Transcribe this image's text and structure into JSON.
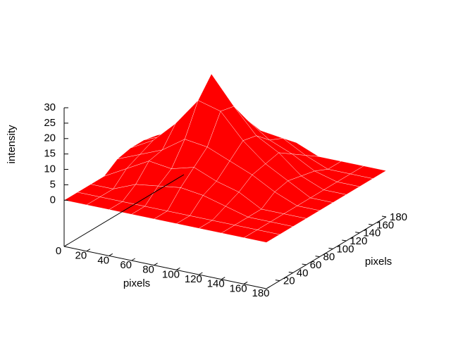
{
  "chart_data": {
    "type": "surface",
    "xlabel": "pixels",
    "ylabel": "pixels",
    "zlabel": "intensity",
    "color": "#ff0000",
    "xlim": [
      0,
      180
    ],
    "xticks": [
      0,
      20,
      40,
      60,
      80,
      100,
      120,
      140,
      160,
      180
    ],
    "ylim": [
      0,
      180
    ],
    "yticks": [
      20,
      40,
      60,
      80,
      100,
      120,
      140,
      160,
      180
    ],
    "zlim": [
      -15,
      30
    ],
    "zticks": [
      0,
      5,
      10,
      15,
      20,
      25,
      30
    ],
    "x": [
      0,
      20,
      40,
      60,
      80,
      100,
      120,
      140,
      160,
      180
    ],
    "y": [
      0,
      20,
      40,
      60,
      80,
      100,
      120,
      140,
      160,
      180
    ],
    "z": [
      [
        0,
        0,
        0,
        0,
        0,
        0,
        0,
        0,
        0,
        0
      ],
      [
        0,
        0,
        0,
        0,
        0,
        0,
        0,
        0,
        0,
        0
      ],
      [
        0,
        0,
        3,
        4,
        5,
        4,
        2,
        0,
        0,
        0
      ],
      [
        0,
        4,
        8,
        7,
        9,
        6,
        4,
        0,
        0,
        0
      ],
      [
        3,
        6,
        9,
        14,
        13,
        10,
        7,
        3,
        0,
        0
      ],
      [
        4,
        8,
        15,
        24,
        22,
        14,
        8,
        4,
        0,
        0
      ],
      [
        4,
        7,
        14,
        30,
        21,
        13,
        9,
        3,
        0,
        0
      ],
      [
        3,
        6,
        10,
        13,
        14,
        9,
        6,
        2,
        0,
        0
      ],
      [
        0,
        4,
        7,
        9,
        8,
        7,
        3,
        0,
        0,
        0
      ],
      [
        0,
        0,
        4,
        5,
        4,
        3,
        0,
        0,
        0,
        0
      ]
    ]
  }
}
